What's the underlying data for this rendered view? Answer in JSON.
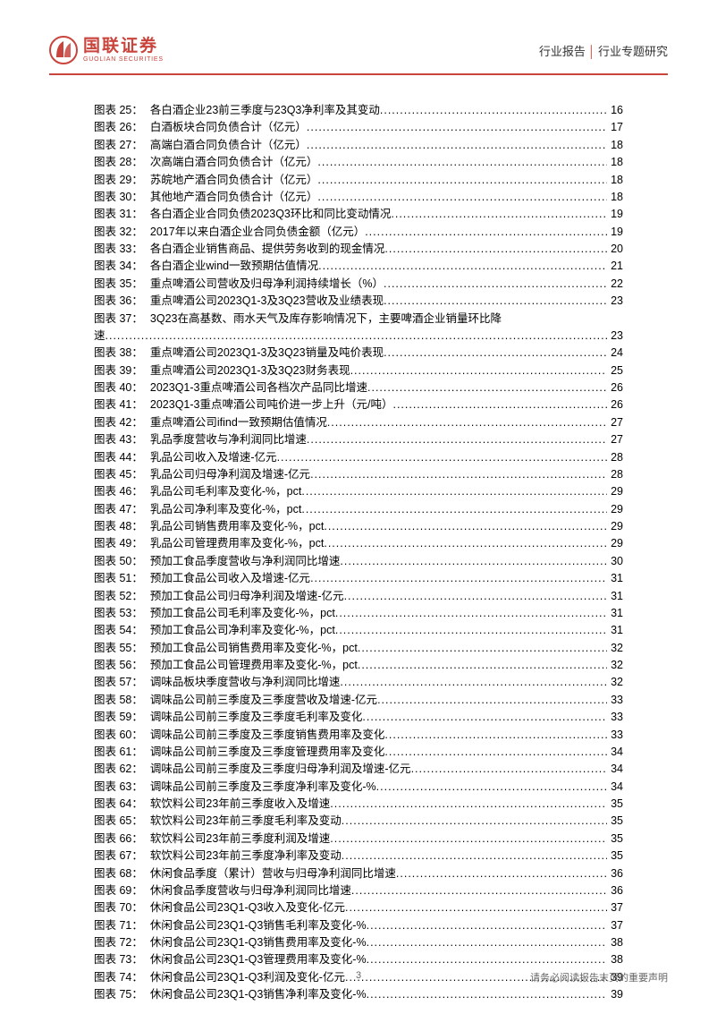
{
  "header": {
    "logo_cn": "国联证券",
    "logo_en": "GUOLIAN SECURITIES",
    "right_part1": "行业报告",
    "right_part2": "行业专题研究",
    "logo_color": "#c8443c"
  },
  "toc_prefix": "图表",
  "toc": [
    {
      "n": 25,
      "t": "各白酒企业23前三季度与23Q3净利率及其变动",
      "p": 16
    },
    {
      "n": 26,
      "t": "白酒板块合同负债合计（亿元）",
      "p": 17
    },
    {
      "n": 27,
      "t": "高端白酒合同负债合计（亿元）",
      "p": 18
    },
    {
      "n": 28,
      "t": "次高端白酒合同负债合计（亿元）",
      "p": 18
    },
    {
      "n": 29,
      "t": "苏皖地产酒合同负债合计（亿元）",
      "p": 18
    },
    {
      "n": 30,
      "t": "其他地产酒合同负债合计（亿元）",
      "p": 18
    },
    {
      "n": 31,
      "t": "各白酒企业合同负债2023Q3环比和同比变动情况",
      "p": 19
    },
    {
      "n": 32,
      "t": "2017年以来白酒企业合同负债金额（亿元）",
      "p": 19
    },
    {
      "n": 33,
      "t": "各白酒企业销售商品、提供劳务收到的现金情况",
      "p": 20
    },
    {
      "n": 34,
      "t": "各白酒企业wind一致预期估值情况",
      "p": 21
    },
    {
      "n": 35,
      "t": "重点啤酒公司营收及归母净利润持续增长（%）",
      "p": 22
    },
    {
      "n": 36,
      "t": "重点啤酒公司2023Q1-3及3Q23营收及业绩表现",
      "p": 23
    },
    {
      "n": 37,
      "t": "3Q23在高基数、雨水天气及库存影响情况下，主要啤酒企业销量环比降速",
      "p": 23,
      "wrap": true
    },
    {
      "n": 38,
      "t": "重点啤酒公司2023Q1-3及3Q23销量及吨价表现",
      "p": 24
    },
    {
      "n": 39,
      "t": "重点啤酒公司2023Q1-3及3Q23财务表现",
      "p": 25
    },
    {
      "n": 40,
      "t": "2023Q1-3重点啤酒公司各档次产品同比增速",
      "p": 26
    },
    {
      "n": 41,
      "t": "2023Q1-3重点啤酒公司吨价进一步上升（元/吨）",
      "p": 26
    },
    {
      "n": 42,
      "t": "重点啤酒公司ifind一致预期估值情况",
      "p": 27
    },
    {
      "n": 43,
      "t": "乳品季度营收与净利润同比增速",
      "p": 27
    },
    {
      "n": 44,
      "t": "乳品公司收入及增速-亿元",
      "p": 28
    },
    {
      "n": 45,
      "t": "乳品公司归母净利润及增速-亿元",
      "p": 28
    },
    {
      "n": 46,
      "t": "乳品公司毛利率及变化-%，pct",
      "p": 29
    },
    {
      "n": 47,
      "t": "乳品公司净利率及变化-%，pct",
      "p": 29
    },
    {
      "n": 48,
      "t": "乳品公司销售费用率及变化-%，pct",
      "p": 29
    },
    {
      "n": 49,
      "t": "乳品公司管理费用率及变化-%，pct",
      "p": 29
    },
    {
      "n": 50,
      "t": "预加工食品季度营收与净利润同比增速",
      "p": 30
    },
    {
      "n": 51,
      "t": "预加工食品公司收入及增速-亿元",
      "p": 31
    },
    {
      "n": 52,
      "t": "预加工食品公司归母净利润及增速-亿元",
      "p": 31
    },
    {
      "n": 53,
      "t": "预加工食品公司毛利率及变化-%，pct",
      "p": 31
    },
    {
      "n": 54,
      "t": "预加工食品公司净利率及变化-%，pct",
      "p": 31
    },
    {
      "n": 55,
      "t": "预加工食品公司销售费用率及变化-%，pct",
      "p": 32
    },
    {
      "n": 56,
      "t": "预加工食品公司管理费用率及变化-%，pct",
      "p": 32
    },
    {
      "n": 57,
      "t": "调味品板块季度营收与净利润同比增速",
      "p": 32
    },
    {
      "n": 58,
      "t": "调味品公司前三季度及三季度营收及增速-亿元",
      "p": 33
    },
    {
      "n": 59,
      "t": "调味品公司前三季度及三季度毛利率及变化",
      "p": 33
    },
    {
      "n": 60,
      "t": "调味品公司前三季度及三季度销售费用率及变化",
      "p": 33
    },
    {
      "n": 61,
      "t": "调味品公司前三季度及三季度管理费用率及变化",
      "p": 34
    },
    {
      "n": 62,
      "t": "调味品公司前三季度及三季度归母净利润及增速-亿元",
      "p": 34
    },
    {
      "n": 63,
      "t": "调味品公司前三季度及三季度净利率及变化-%",
      "p": 34
    },
    {
      "n": 64,
      "t": "软饮料公司23年前三季度收入及增速",
      "p": 35
    },
    {
      "n": 65,
      "t": "软饮料公司23年前三季度毛利率及变动",
      "p": 35
    },
    {
      "n": 66,
      "t": "软饮料公司23年前三季度利润及增速",
      "p": 35
    },
    {
      "n": 67,
      "t": "软饮料公司23年前三季度净利率及变动",
      "p": 35
    },
    {
      "n": 68,
      "t": "休闲食品季度（累计）营收与归母净利润同比增速",
      "p": 36
    },
    {
      "n": 69,
      "t": "休闲食品季度营收与归母净利润同比增速",
      "p": 36
    },
    {
      "n": 70,
      "t": "休闲食品公司23Q1-Q3收入及变化-亿元",
      "p": 37
    },
    {
      "n": 71,
      "t": "休闲食品公司23Q1-Q3销售毛利率及变化-%",
      "p": 37
    },
    {
      "n": 72,
      "t": "休闲食品公司23Q1-Q3销售费用率及变化-%",
      "p": 38
    },
    {
      "n": 73,
      "t": "休闲食品公司23Q1-Q3管理费用率及变化-%",
      "p": 38
    },
    {
      "n": 74,
      "t": "休闲食品公司23Q1-Q3利润及变化-亿元",
      "p": 39
    },
    {
      "n": 75,
      "t": "休闲食品公司23Q1-Q3销售净利率及变化-%",
      "p": 39
    }
  ],
  "footer": {
    "page": "3",
    "disclaimer": "请务必阅读报告末页的重要声明"
  }
}
